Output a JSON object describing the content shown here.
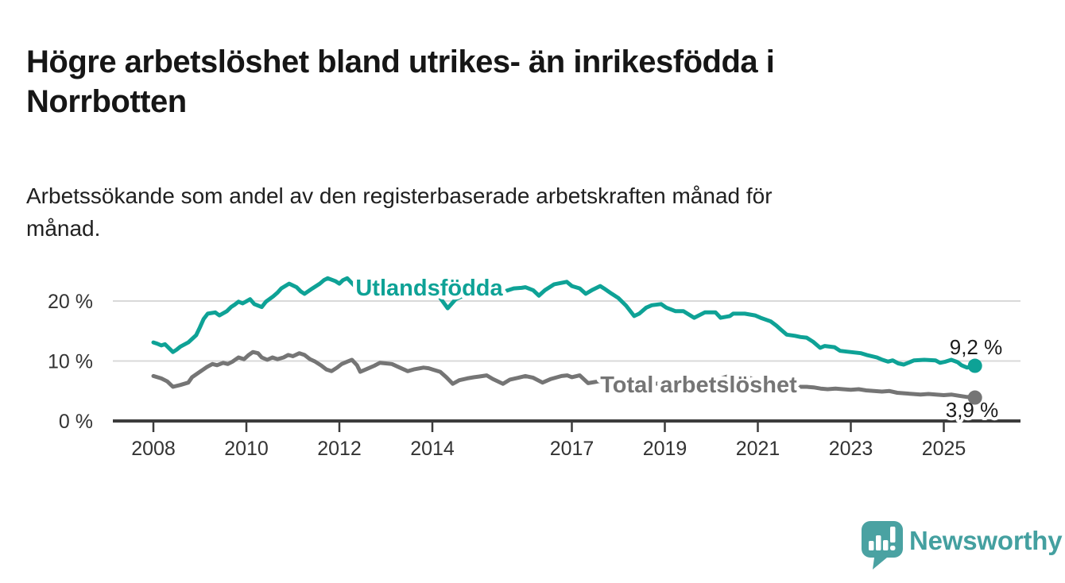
{
  "header": {
    "title_line1": "Högre arbetslöshet bland utrikes- än inrikesfödda i",
    "title_line2": "Norrbotten",
    "subtitle_line1": "Arbetssökande som andel av den registerbaserade arbetskraften månad för",
    "subtitle_line2": "månad."
  },
  "footer": {
    "brand": "Newsworthy",
    "brand_color": "#44a0a0",
    "logo_icon": "speech-bubble-bar-chart-icon"
  },
  "chart_data": {
    "type": "line",
    "title": "Högre arbetslöshet bland utrikes- än inrikesfödda i Norrbotten",
    "subtitle": "Arbetssökande som andel av den registerbaserade arbetskraften månad för månad.",
    "frequency": "monthly",
    "grid": "horizontal",
    "legend": "inline-labels",
    "unit": "%",
    "x_axis": {
      "ticks": [
        2008,
        2010,
        2012,
        2014,
        2017,
        2019,
        2021,
        2023,
        2025
      ],
      "range": [
        2007.1,
        2026.7
      ]
    },
    "y_axis": {
      "ticks": [
        0,
        10,
        20
      ],
      "tick_labels": [
        "0 %",
        "10 %",
        "20 %"
      ],
      "range": [
        0,
        26
      ]
    },
    "style": {
      "grid_color": "#d9d9d9",
      "axis_color": "#3c3c3c",
      "tick_text_color": "#333333",
      "value_label_color": "#1a1a1a",
      "background": "#ffffff"
    },
    "series": [
      {
        "id": "total",
        "name": "Total arbetslöshet",
        "color": "#757575",
        "end_value": 3.9,
        "end_label": "3,9 %",
        "points": [
          [
            2008.0,
            7.5
          ],
          [
            2008.17,
            7.1
          ],
          [
            2008.3,
            6.6
          ],
          [
            2008.42,
            5.7
          ],
          [
            2008.58,
            6.0
          ],
          [
            2008.75,
            6.4
          ],
          [
            2008.83,
            7.3
          ],
          [
            2009.0,
            8.2
          ],
          [
            2009.15,
            9.0
          ],
          [
            2009.27,
            9.5
          ],
          [
            2009.37,
            9.3
          ],
          [
            2009.5,
            9.7
          ],
          [
            2009.6,
            9.5
          ],
          [
            2009.7,
            9.9
          ],
          [
            2009.83,
            10.6
          ],
          [
            2009.95,
            10.3
          ],
          [
            2010.05,
            11.0
          ],
          [
            2010.14,
            11.5
          ],
          [
            2010.25,
            11.3
          ],
          [
            2010.33,
            10.6
          ],
          [
            2010.45,
            10.2
          ],
          [
            2010.56,
            10.6
          ],
          [
            2010.67,
            10.3
          ],
          [
            2010.8,
            10.6
          ],
          [
            2010.9,
            11.0
          ],
          [
            2011.0,
            10.8
          ],
          [
            2011.14,
            11.3
          ],
          [
            2011.25,
            11.0
          ],
          [
            2011.37,
            10.3
          ],
          [
            2011.48,
            9.9
          ],
          [
            2011.6,
            9.3
          ],
          [
            2011.72,
            8.6
          ],
          [
            2011.83,
            8.3
          ],
          [
            2011.95,
            8.9
          ],
          [
            2012.05,
            9.5
          ],
          [
            2012.17,
            9.9
          ],
          [
            2012.27,
            10.2
          ],
          [
            2012.38,
            9.3
          ],
          [
            2012.45,
            8.2
          ],
          [
            2012.6,
            8.7
          ],
          [
            2012.75,
            9.2
          ],
          [
            2012.87,
            9.7
          ],
          [
            2013.0,
            9.6
          ],
          [
            2013.13,
            9.5
          ],
          [
            2013.3,
            8.9
          ],
          [
            2013.47,
            8.3
          ],
          [
            2013.6,
            8.6
          ],
          [
            2013.81,
            8.9
          ],
          [
            2013.92,
            8.8
          ],
          [
            2014.0,
            8.6
          ],
          [
            2014.17,
            8.2
          ],
          [
            2014.3,
            7.3
          ],
          [
            2014.44,
            6.2
          ],
          [
            2014.58,
            6.8
          ],
          [
            2014.75,
            7.1
          ],
          [
            2014.9,
            7.3
          ],
          [
            2015.0,
            7.4
          ],
          [
            2015.17,
            7.6
          ],
          [
            2015.3,
            7.0
          ],
          [
            2015.52,
            6.2
          ],
          [
            2015.67,
            6.9
          ],
          [
            2015.85,
            7.2
          ],
          [
            2016.0,
            7.5
          ],
          [
            2016.17,
            7.2
          ],
          [
            2016.37,
            6.4
          ],
          [
            2016.55,
            7.0
          ],
          [
            2016.78,
            7.5
          ],
          [
            2016.9,
            7.6
          ],
          [
            2017.0,
            7.3
          ],
          [
            2017.17,
            7.6
          ],
          [
            2017.35,
            6.3
          ],
          [
            2017.5,
            6.5
          ],
          [
            2017.75,
            6.9
          ],
          [
            2018.0,
            6.8
          ],
          [
            2018.25,
            6.4
          ],
          [
            2018.5,
            5.9
          ],
          [
            2018.75,
            6.2
          ],
          [
            2019.0,
            6.3
          ],
          [
            2019.25,
            6.0
          ],
          [
            2019.5,
            5.7
          ],
          [
            2019.75,
            5.9
          ],
          [
            2020.0,
            6.1
          ],
          [
            2020.25,
            7.2
          ],
          [
            2020.42,
            7.6
          ],
          [
            2020.67,
            7.4
          ],
          [
            2020.92,
            7.0
          ],
          [
            2021.17,
            6.6
          ],
          [
            2021.42,
            6.2
          ],
          [
            2021.67,
            5.9
          ],
          [
            2021.92,
            5.7
          ],
          [
            2022.05,
            5.7
          ],
          [
            2022.2,
            5.6
          ],
          [
            2022.35,
            5.4
          ],
          [
            2022.5,
            5.3
          ],
          [
            2022.67,
            5.4
          ],
          [
            2022.83,
            5.3
          ],
          [
            2023.0,
            5.2
          ],
          [
            2023.17,
            5.3
          ],
          [
            2023.33,
            5.1
          ],
          [
            2023.5,
            5.0
          ],
          [
            2023.67,
            4.9
          ],
          [
            2023.83,
            5.0
          ],
          [
            2024.0,
            4.7
          ],
          [
            2024.17,
            4.6
          ],
          [
            2024.33,
            4.5
          ],
          [
            2024.5,
            4.4
          ],
          [
            2024.67,
            4.5
          ],
          [
            2024.83,
            4.4
          ],
          [
            2025.0,
            4.3
          ],
          [
            2025.17,
            4.4
          ],
          [
            2025.33,
            4.2
          ],
          [
            2025.5,
            4.0
          ],
          [
            2025.67,
            3.9
          ]
        ]
      },
      {
        "id": "utlandsfodda",
        "name": "Utlandsfödda",
        "color": "#0ea296",
        "end_value": 9.2,
        "end_label": "9,2 %",
        "points": [
          [
            2008.0,
            13.1
          ],
          [
            2008.08,
            12.9
          ],
          [
            2008.17,
            12.6
          ],
          [
            2008.25,
            12.8
          ],
          [
            2008.42,
            11.5
          ],
          [
            2008.5,
            11.9
          ],
          [
            2008.58,
            12.4
          ],
          [
            2008.75,
            13.1
          ],
          [
            2008.92,
            14.3
          ],
          [
            2009.0,
            15.6
          ],
          [
            2009.08,
            17.0
          ],
          [
            2009.17,
            17.9
          ],
          [
            2009.33,
            18.1
          ],
          [
            2009.42,
            17.6
          ],
          [
            2009.58,
            18.3
          ],
          [
            2009.67,
            19.0
          ],
          [
            2009.75,
            19.4
          ],
          [
            2009.83,
            19.9
          ],
          [
            2009.92,
            19.6
          ],
          [
            2010.08,
            20.3
          ],
          [
            2010.17,
            19.5
          ],
          [
            2010.33,
            19.0
          ],
          [
            2010.42,
            19.9
          ],
          [
            2010.58,
            20.8
          ],
          [
            2010.67,
            21.4
          ],
          [
            2010.75,
            22.1
          ],
          [
            2010.92,
            22.9
          ],
          [
            2011.08,
            22.3
          ],
          [
            2011.17,
            21.6
          ],
          [
            2011.25,
            21.2
          ],
          [
            2011.42,
            22.1
          ],
          [
            2011.58,
            22.9
          ],
          [
            2011.67,
            23.5
          ],
          [
            2011.75,
            23.8
          ],
          [
            2011.92,
            23.3
          ],
          [
            2012.0,
            22.9
          ],
          [
            2012.08,
            23.5
          ],
          [
            2012.17,
            23.8
          ],
          [
            2012.33,
            22.5
          ],
          [
            2012.42,
            20.9
          ],
          [
            2012.58,
            22.0
          ],
          [
            2012.75,
            22.8
          ],
          [
            2012.92,
            23.0
          ],
          [
            2013.08,
            22.7
          ],
          [
            2013.25,
            22.3
          ],
          [
            2013.5,
            21.8
          ],
          [
            2013.75,
            22.2
          ],
          [
            2013.92,
            22.4
          ],
          [
            2014.0,
            21.9
          ],
          [
            2014.17,
            20.5
          ],
          [
            2014.33,
            18.8
          ],
          [
            2014.5,
            20.3
          ],
          [
            2014.67,
            20.9
          ],
          [
            2014.83,
            21.3
          ],
          [
            2015.0,
            21.6
          ],
          [
            2015.17,
            21.1
          ],
          [
            2015.33,
            20.6
          ],
          [
            2015.5,
            21.5
          ],
          [
            2015.75,
            22.1
          ],
          [
            2015.92,
            22.2
          ],
          [
            2016.0,
            22.3
          ],
          [
            2016.17,
            21.8
          ],
          [
            2016.29,
            20.9
          ],
          [
            2016.42,
            21.8
          ],
          [
            2016.62,
            22.8
          ],
          [
            2016.89,
            23.2
          ],
          [
            2017.0,
            22.5
          ],
          [
            2017.17,
            22.1
          ],
          [
            2017.3,
            21.2
          ],
          [
            2017.45,
            21.9
          ],
          [
            2017.61,
            22.5
          ],
          [
            2017.69,
            22.1
          ],
          [
            2017.86,
            21.2
          ],
          [
            2018.0,
            20.5
          ],
          [
            2018.17,
            19.2
          ],
          [
            2018.34,
            17.5
          ],
          [
            2018.45,
            17.9
          ],
          [
            2018.6,
            18.9
          ],
          [
            2018.72,
            19.3
          ],
          [
            2018.92,
            19.5
          ],
          [
            2019.03,
            18.9
          ],
          [
            2019.23,
            18.3
          ],
          [
            2019.4,
            18.3
          ],
          [
            2019.63,
            17.2
          ],
          [
            2019.86,
            18.1
          ],
          [
            2020.09,
            18.1
          ],
          [
            2020.2,
            17.2
          ],
          [
            2020.4,
            17.5
          ],
          [
            2020.47,
            17.9
          ],
          [
            2020.72,
            17.9
          ],
          [
            2020.94,
            17.6
          ],
          [
            2021.06,
            17.2
          ],
          [
            2021.28,
            16.6
          ],
          [
            2021.4,
            15.9
          ],
          [
            2021.5,
            15.2
          ],
          [
            2021.62,
            14.4
          ],
          [
            2021.8,
            14.2
          ],
          [
            2021.92,
            14.0
          ],
          [
            2022.05,
            13.9
          ],
          [
            2022.19,
            13.2
          ],
          [
            2022.34,
            12.2
          ],
          [
            2022.44,
            12.5
          ],
          [
            2022.65,
            12.3
          ],
          [
            2022.77,
            11.7
          ],
          [
            2022.99,
            11.5
          ],
          [
            2023.22,
            11.3
          ],
          [
            2023.34,
            11.0
          ],
          [
            2023.56,
            10.6
          ],
          [
            2023.68,
            10.2
          ],
          [
            2023.8,
            9.9
          ],
          [
            2023.9,
            10.1
          ],
          [
            2024.02,
            9.6
          ],
          [
            2024.14,
            9.4
          ],
          [
            2024.36,
            10.1
          ],
          [
            2024.58,
            10.2
          ],
          [
            2024.82,
            10.1
          ],
          [
            2024.92,
            9.7
          ],
          [
            2025.04,
            9.9
          ],
          [
            2025.16,
            10.2
          ],
          [
            2025.3,
            9.8
          ],
          [
            2025.38,
            9.3
          ],
          [
            2025.5,
            8.9
          ],
          [
            2025.67,
            9.2
          ]
        ]
      }
    ]
  }
}
